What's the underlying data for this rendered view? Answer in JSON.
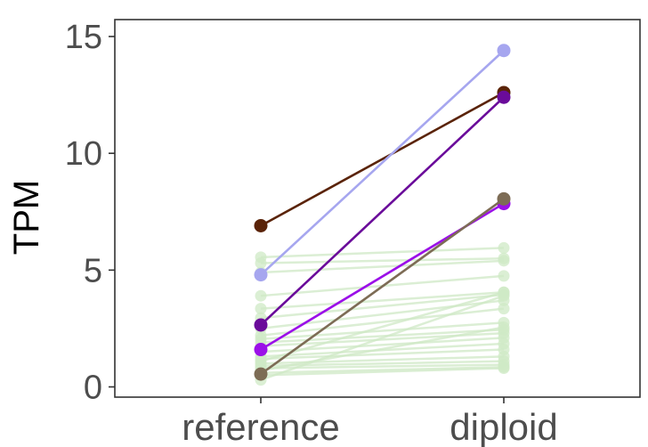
{
  "chart_data": {
    "type": "line",
    "categories": [
      "reference",
      "diploid"
    ],
    "xlabel": "",
    "ylabel": "TPM",
    "ylim": [
      0,
      15
    ],
    "yticks": [
      0,
      5,
      10,
      15
    ],
    "yticks_labels": [
      "0",
      "5",
      "10",
      "15"
    ],
    "grid": false,
    "legend": "none",
    "highlighted_series": [
      {
        "values": [
          6.9,
          12.6
        ],
        "color": "#5a2308"
      },
      {
        "values": [
          4.8,
          14.4
        ],
        "color": "#a6a6ef"
      },
      {
        "values": [
          2.65,
          12.4
        ],
        "color": "#6a0b9a"
      },
      {
        "values": [
          1.6,
          7.85
        ],
        "color": "#9b10e8"
      },
      {
        "values": [
          0.55,
          8.05
        ],
        "color": "#7d6c55"
      }
    ],
    "background_series_color": "#cfe9c6",
    "background_series": [
      [
        5.55,
        5.95
      ],
      [
        5.3,
        5.5
      ],
      [
        4.9,
        5.4
      ],
      [
        3.9,
        4.75
      ],
      [
        3.35,
        4.05
      ],
      [
        2.95,
        3.95
      ],
      [
        2.5,
        3.7
      ],
      [
        2.2,
        3.35
      ],
      [
        2.05,
        2.75
      ],
      [
        1.9,
        2.45
      ],
      [
        1.75,
        2.3
      ],
      [
        1.5,
        2.1
      ],
      [
        1.3,
        1.85
      ],
      [
        1.2,
        1.6
      ],
      [
        1.1,
        4.05
      ],
      [
        1.0,
        1.3
      ],
      [
        0.9,
        1.1
      ],
      [
        0.8,
        0.95
      ],
      [
        0.7,
        2.55
      ],
      [
        0.6,
        0.85
      ],
      [
        0.5,
        0.8
      ],
      [
        0.3,
        3.9
      ]
    ]
  }
}
